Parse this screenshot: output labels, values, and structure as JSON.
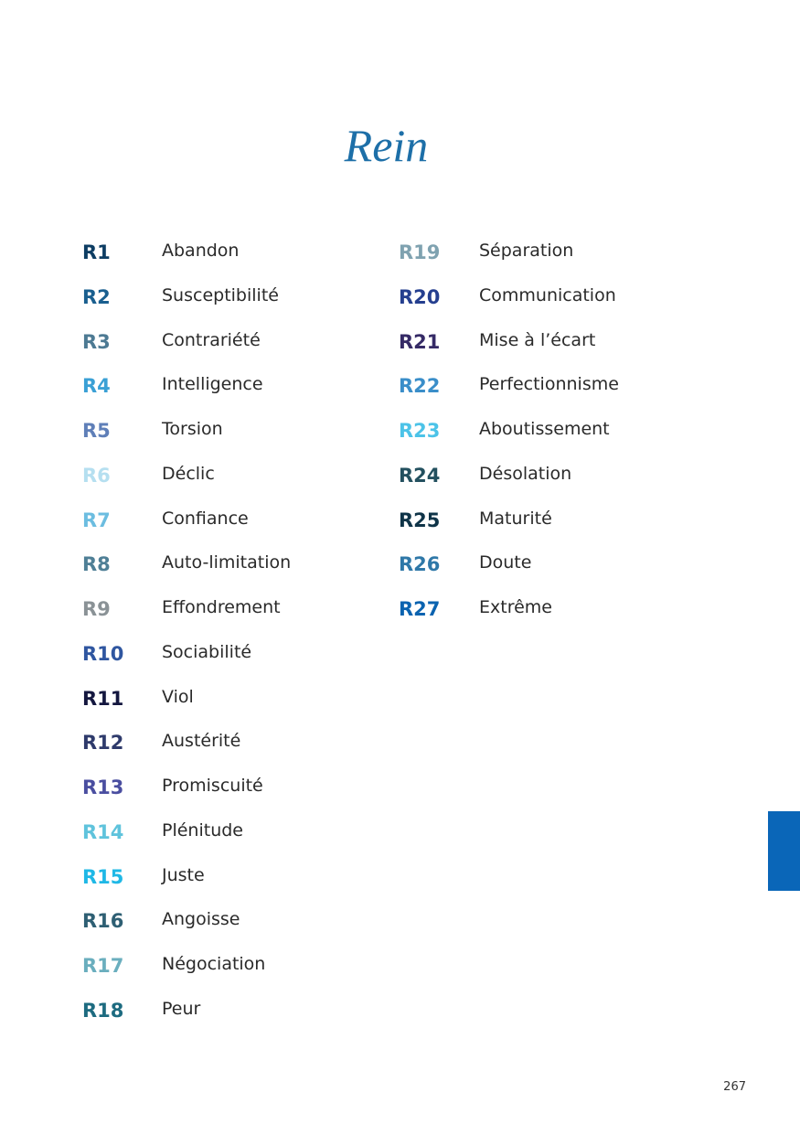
{
  "header": {
    "title": "Rein"
  },
  "columns": [
    [
      {
        "code": "R1",
        "label": "Abandon",
        "color": "#0d3d63"
      },
      {
        "code": "R2",
        "label": "Susceptibilité",
        "color": "#1a5f8f"
      },
      {
        "code": "R3",
        "label": "Contrariété",
        "color": "#4d7a93"
      },
      {
        "code": "R4",
        "label": "Intelligence",
        "color": "#3aa0d5"
      },
      {
        "code": "R5",
        "label": "Torsion",
        "color": "#5f7fb8"
      },
      {
        "code": "R6",
        "label": "Déclic",
        "color": "#b5dff0"
      },
      {
        "code": "R7",
        "label": "Confiance",
        "color": "#6cbde0"
      },
      {
        "code": "R8",
        "label": "Auto-limitation",
        "color": "#4f7f96"
      },
      {
        "code": "R9",
        "label": "Effondrement",
        "color": "#8a9296"
      },
      {
        "code": "R10",
        "label": "Sociabilité",
        "color": "#2f56a0"
      },
      {
        "code": "R11",
        "label": "Viol",
        "color": "#14173f"
      },
      {
        "code": "R12",
        "label": "Austérité",
        "color": "#2e3a6b"
      },
      {
        "code": "R13",
        "label": "Promiscuité",
        "color": "#4a4ea0"
      },
      {
        "code": "R14",
        "label": "Plénitude",
        "color": "#5fc3dc"
      },
      {
        "code": "R15",
        "label": "Juste",
        "color": "#1fb8e6"
      },
      {
        "code": "R16",
        "label": "Angoisse",
        "color": "#2e5f73"
      },
      {
        "code": "R17",
        "label": "Négociation",
        "color": "#6aaebe"
      },
      {
        "code": "R18",
        "label": "Peur",
        "color": "#1d6b80"
      }
    ],
    [
      {
        "code": "R19",
        "label": "Séparation",
        "color": "#7fa2b0"
      },
      {
        "code": "R20",
        "label": "Communication",
        "color": "#253f8f"
      },
      {
        "code": "R21",
        "label": "Mise à l’écart",
        "color": "#352a66"
      },
      {
        "code": "R22",
        "label": "Perfectionnisme",
        "color": "#3a8ec9"
      },
      {
        "code": "R23",
        "label": "Aboutissement",
        "color": "#4cc3e8"
      },
      {
        "code": "R24",
        "label": "Désolation",
        "color": "#23505f"
      },
      {
        "code": "R25",
        "label": "Maturité",
        "color": "#0f3448"
      },
      {
        "code": "R26",
        "label": "Doute",
        "color": "#2f78a8"
      },
      {
        "code": "R27",
        "label": "Extrême",
        "color": "#0a63b0"
      }
    ]
  ],
  "footer": {
    "page_number": "267"
  }
}
